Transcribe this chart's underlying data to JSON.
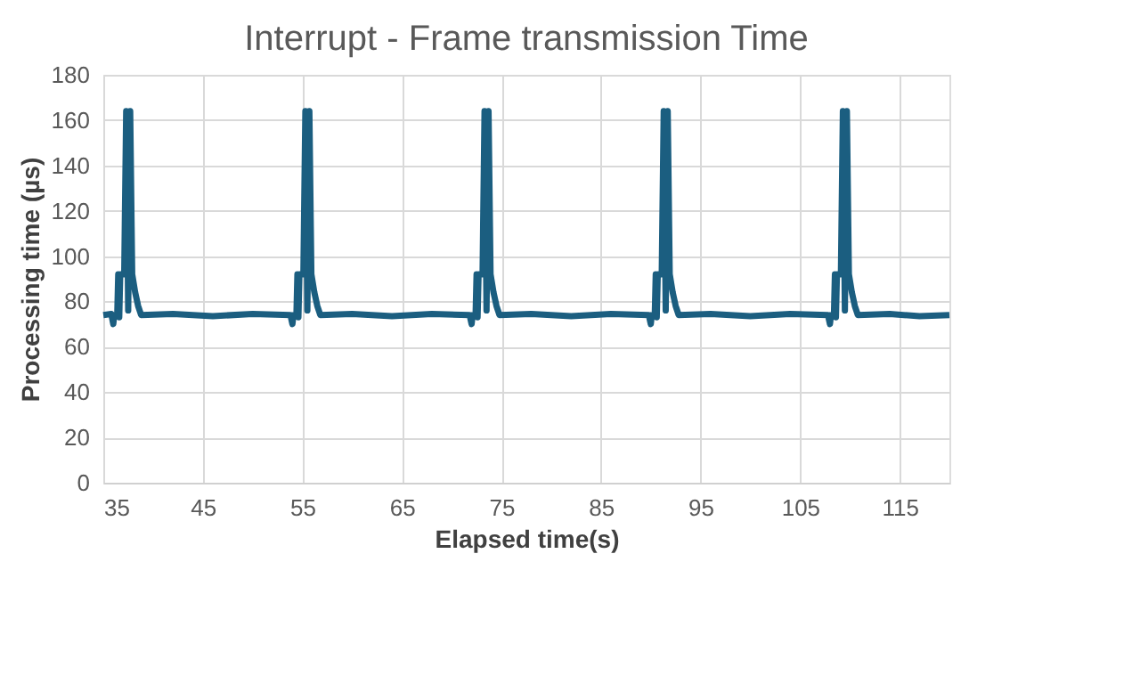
{
  "chart_data": {
    "type": "line",
    "title": "Interrupt - Frame transmission Time",
    "xlabel": "Elapsed time(s)",
    "ylabel": "Processing time (µs)",
    "x": [
      35.0,
      35.8,
      36.0,
      36.1,
      36.4,
      36.5,
      36.6,
      36.7,
      37.1,
      37.3,
      37.5,
      37.7,
      37.9,
      38.2,
      38.5,
      38.8,
      42,
      46,
      50,
      53.8,
      54.0,
      54.1,
      54.4,
      54.5,
      54.6,
      54.7,
      55.1,
      55.3,
      55.5,
      55.7,
      55.9,
      56.2,
      56.5,
      56.8,
      60,
      64,
      68,
      71.8,
      72.0,
      72.1,
      72.4,
      72.5,
      72.6,
      72.7,
      73.1,
      73.3,
      73.5,
      73.7,
      73.9,
      74.2,
      74.5,
      74.8,
      78,
      82,
      86,
      89.8,
      90.0,
      90.1,
      90.4,
      90.5,
      90.6,
      90.7,
      91.1,
      91.3,
      91.5,
      91.7,
      91.9,
      92.2,
      92.5,
      92.8,
      96,
      100,
      104,
      107.8,
      108.0,
      108.1,
      108.4,
      108.5,
      108.6,
      108.7,
      109.1,
      109.3,
      109.5,
      109.7,
      109.9,
      110.2,
      110.5,
      110.8,
      114,
      117,
      120
    ],
    "series": [
      {
        "color": "#1b5e80",
        "values": [
          74,
          74.5,
          70,
          74,
          74,
          92,
          73,
          92,
          92,
          164,
          76,
          164,
          92,
          84,
          78,
          74,
          74.5,
          73.5,
          74.5,
          74,
          70,
          74,
          74,
          92,
          73,
          92,
          92,
          164,
          76,
          164,
          92,
          84,
          78,
          74,
          74.5,
          73.5,
          74.5,
          74,
          70,
          74,
          74,
          92,
          73,
          92,
          92,
          164,
          76,
          164,
          92,
          84,
          78,
          74,
          74.5,
          73.5,
          74.5,
          74,
          70,
          74,
          74,
          92,
          73,
          92,
          92,
          164,
          76,
          164,
          92,
          84,
          78,
          74,
          74.5,
          73.5,
          74.5,
          74,
          70,
          74,
          74,
          92,
          73,
          92,
          92,
          164,
          76,
          164,
          92,
          84,
          78,
          74,
          74.5,
          73.5,
          74
        ]
      }
    ],
    "xlim": [
      35,
      120
    ],
    "xticks": [
      35,
      45,
      55,
      65,
      75,
      85,
      95,
      105,
      115
    ],
    "ylim": [
      0,
      180
    ],
    "yticks": [
      0,
      20,
      40,
      60,
      80,
      100,
      120,
      140,
      160,
      180
    ],
    "grid": true,
    "legend": false,
    "marker": "none",
    "line_style": "solid"
  }
}
